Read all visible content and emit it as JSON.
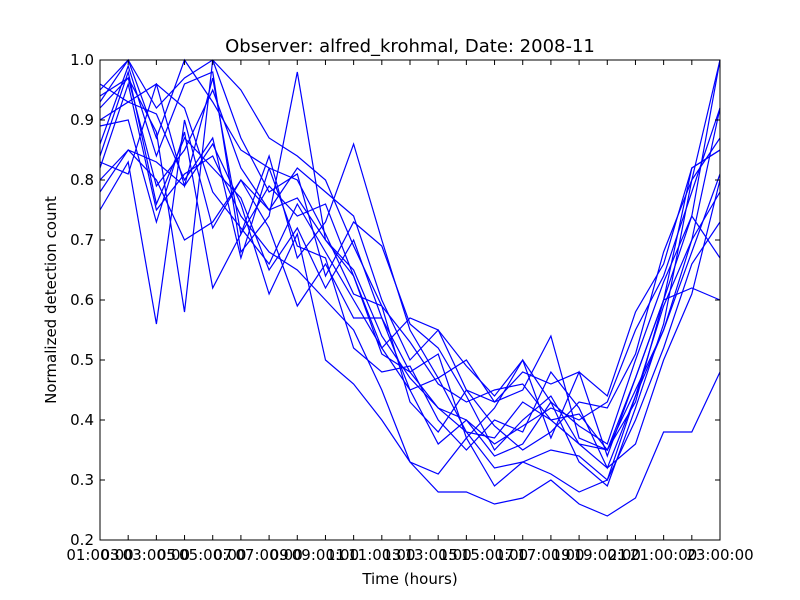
{
  "colors": {
    "series": "#0000ff",
    "axes": "#000000",
    "background": "#ffffff"
  },
  "chart_data": {
    "type": "line",
    "title": "Observer: alfred_krohmal, Date: 2008-11",
    "xlabel": "Time (hours)",
    "ylabel": "Normalized detection count",
    "x_tick_labels": [
      "01:00:00",
      "03:00:00",
      "05:00:00",
      "07:00:00",
      "09:00:00",
      "11:00:00",
      "13:00:00",
      "15:00:00",
      "17:00:00",
      "19:00:00",
      "21:00:00",
      "23:00:00"
    ],
    "x_tick_labels_overlap": [
      "03",
      "05",
      "07",
      "09",
      "11",
      "13",
      "15",
      "17",
      "19",
      "21"
    ],
    "y_ticks": [
      0.2,
      0.3,
      0.4,
      0.5,
      0.6,
      0.7,
      0.8,
      0.9,
      1.0
    ],
    "y_tick_labels": [
      "0.2",
      "0.3",
      "0.4",
      "0.5",
      "0.6",
      "0.7",
      "0.8",
      "0.9",
      "1.0"
    ],
    "xlim": [
      1,
      23
    ],
    "ylim": [
      0.2,
      1.0
    ],
    "grid": false,
    "legend": "none",
    "x": [
      1,
      2,
      3,
      4,
      5,
      6,
      7,
      8,
      9,
      10,
      11,
      12,
      13,
      14,
      15,
      16,
      17,
      18,
      19,
      20,
      21,
      22,
      23
    ],
    "series": [
      {
        "values": [
          0.93,
          1.0,
          0.92,
          0.97,
          1.0,
          0.95,
          0.87,
          0.84,
          0.8,
          0.69,
          0.59,
          0.53,
          0.46,
          0.43,
          0.45,
          0.46,
          0.4,
          0.41,
          0.35,
          0.47,
          0.6,
          0.74,
          1.0
        ]
      },
      {
        "values": [
          0.92,
          0.97,
          0.79,
          0.85,
          0.95,
          0.82,
          0.75,
          0.77,
          0.7,
          0.65,
          0.54,
          0.47,
          0.42,
          0.38,
          0.32,
          0.33,
          0.35,
          0.34,
          0.3,
          0.44,
          0.55,
          0.68,
          0.81
        ]
      },
      {
        "values": [
          0.82,
          0.96,
          0.75,
          0.81,
          0.84,
          0.74,
          0.68,
          0.65,
          0.6,
          0.55,
          0.45,
          0.33,
          0.31,
          0.37,
          0.29,
          0.33,
          0.31,
          0.28,
          0.3,
          0.4,
          0.52,
          0.66,
          0.73
        ]
      },
      {
        "values": [
          0.8,
          0.85,
          0.83,
          0.79,
          0.86,
          0.76,
          0.61,
          0.71,
          0.5,
          0.46,
          0.4,
          0.33,
          0.28,
          0.28,
          0.26,
          0.27,
          0.3,
          0.26,
          0.24,
          0.27,
          0.38,
          0.38,
          0.48
        ]
      },
      {
        "values": [
          0.75,
          0.83,
          0.56,
          0.9,
          0.72,
          0.8,
          0.72,
          0.59,
          0.66,
          0.57,
          0.57,
          0.45,
          0.36,
          0.4,
          0.36,
          0.39,
          0.42,
          0.4,
          0.43,
          0.55,
          0.64,
          0.78,
          0.92
        ]
      },
      {
        "values": [
          0.94,
          0.97,
          0.88,
          0.58,
          1.0,
          0.87,
          0.78,
          0.81,
          0.64,
          0.73,
          0.69,
          0.56,
          0.52,
          0.44,
          0.35,
          0.4,
          0.44,
          0.36,
          0.35,
          0.43,
          0.6,
          0.62,
          0.6
        ]
      },
      {
        "values": [
          0.89,
          0.9,
          0.73,
          0.88,
          0.62,
          0.71,
          0.79,
          0.74,
          0.76,
          0.64,
          0.52,
          0.57,
          0.55,
          0.45,
          0.43,
          0.48,
          0.46,
          0.48,
          0.44,
          0.58,
          0.66,
          0.82,
          0.85
        ]
      },
      {
        "values": [
          0.96,
          0.93,
          0.96,
          0.79,
          0.97,
          0.71,
          0.84,
          0.67,
          0.73,
          0.86,
          0.7,
          0.55,
          0.47,
          0.5,
          0.43,
          0.45,
          0.54,
          0.37,
          0.35,
          0.45,
          0.55,
          0.7,
          0.78
        ]
      },
      {
        "values": [
          0.95,
          1.0,
          0.87,
          1.0,
          0.93,
          0.85,
          0.82,
          0.69,
          0.67,
          0.52,
          0.48,
          0.49,
          0.4,
          0.35,
          0.4,
          0.38,
          0.48,
          0.42,
          0.32,
          0.44,
          0.59,
          0.7,
          0.92
        ]
      },
      {
        "values": [
          0.86,
          0.99,
          0.84,
          0.96,
          0.98,
          0.68,
          0.74,
          0.98,
          0.7,
          0.64,
          0.51,
          0.48,
          0.51,
          0.37,
          0.42,
          0.5,
          0.37,
          0.48,
          0.34,
          0.47,
          0.6,
          0.82,
          0.85
        ]
      },
      {
        "values": [
          0.83,
          0.81,
          0.96,
          0.92,
          0.78,
          0.72,
          0.66,
          0.76,
          0.68,
          0.6,
          0.52,
          0.45,
          0.47,
          0.38,
          0.37,
          0.43,
          0.4,
          0.36,
          0.32,
          0.36,
          0.5,
          0.61,
          0.8
        ]
      },
      {
        "values": [
          0.78,
          0.85,
          0.8,
          0.7,
          0.73,
          0.8,
          0.75,
          0.82,
          0.78,
          0.74,
          0.6,
          0.5,
          0.55,
          0.49,
          0.44,
          0.5,
          0.43,
          0.39,
          0.36,
          0.5,
          0.63,
          0.74,
          0.67
        ]
      },
      {
        "values": [
          0.9,
          0.93,
          0.91,
          0.8,
          0.87,
          0.67,
          0.82,
          0.8,
          0.71,
          0.61,
          0.59,
          0.43,
          0.38,
          0.45,
          0.39,
          0.35,
          0.38,
          0.43,
          0.42,
          0.51,
          0.68,
          0.8,
          1.0
        ]
      },
      {
        "values": [
          0.84,
          0.98,
          0.76,
          0.87,
          0.82,
          0.77,
          0.65,
          0.72,
          0.62,
          0.7,
          0.57,
          0.48,
          0.42,
          0.4,
          0.34,
          0.36,
          0.43,
          0.33,
          0.29,
          0.42,
          0.56,
          0.8,
          0.87
        ]
      }
    ]
  }
}
